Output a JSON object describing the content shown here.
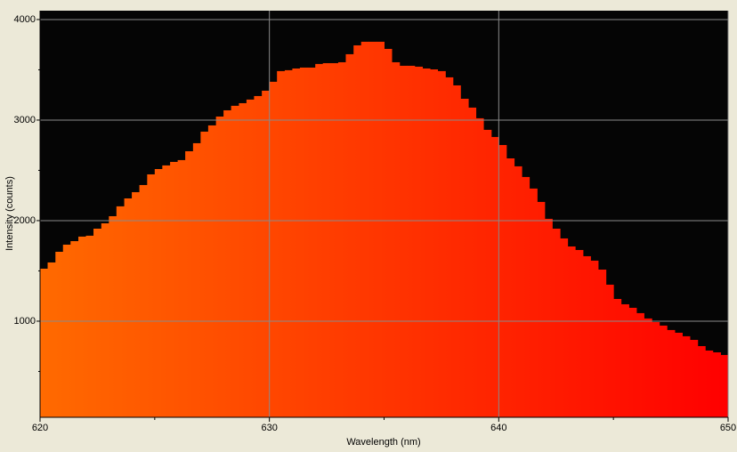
{
  "chart_data": {
    "type": "histogram",
    "xlabel": "Wavelength (nm)",
    "ylabel": "Intensity (counts)",
    "bins": [
      620,
      620.33,
      620.67,
      621,
      621.33,
      621.67,
      622,
      622.33,
      622.67,
      623,
      623.33,
      623.67,
      624,
      624.33,
      624.67,
      625,
      625.33,
      625.67,
      626,
      626.33,
      626.67,
      627,
      627.33,
      627.67,
      628,
      628.33,
      628.67,
      629,
      629.33,
      629.67,
      630,
      630.33,
      630.67,
      631,
      631.33,
      631.67,
      632,
      632.33,
      632.67,
      633,
      633.33,
      633.67,
      634,
      634.33,
      634.67,
      635,
      635.33,
      635.67,
      636,
      636.33,
      636.67,
      637,
      637.33,
      637.67,
      638,
      638.33,
      638.67,
      639,
      639.33,
      639.67,
      640,
      640.33,
      640.67,
      641,
      641.33,
      641.67,
      642,
      642.33,
      642.67,
      643,
      643.33,
      643.67,
      644,
      644.33,
      644.67,
      645,
      645.33,
      645.67,
      646,
      646.33,
      646.67,
      647,
      647.33,
      647.67,
      648,
      648.33,
      648.67,
      649,
      649.33,
      649.67,
      650
    ],
    "values": [
      1522,
      1584,
      1690,
      1761,
      1796,
      1841,
      1850,
      1920,
      1973,
      2044,
      2142,
      2221,
      2283,
      2354,
      2460,
      2513,
      2549,
      2584,
      2602,
      2690,
      2770,
      2885,
      2947,
      3035,
      3097,
      3142,
      3168,
      3204,
      3239,
      3292,
      3381,
      3487,
      3496,
      3513,
      3522,
      3522,
      3558,
      3566,
      3566,
      3575,
      3655,
      3743,
      3779,
      3779,
      3779,
      3708,
      3575,
      3540,
      3540,
      3531,
      3513,
      3504,
      3487,
      3425,
      3345,
      3212,
      3124,
      3018,
      2903,
      2832,
      2752,
      2619,
      2540,
      2434,
      2319,
      2186,
      2018,
      1920,
      1823,
      1743,
      1708,
      1646,
      1602,
      1513,
      1363,
      1221,
      1168,
      1133,
      1080,
      1027,
      991,
      956,
      912,
      885,
      850,
      814,
      752,
      708,
      690,
      664
    ],
    "colors": [
      "#ff6a00",
      "#ff0000"
    ],
    "xlim": [
      620,
      650
    ],
    "ylim": [
      44,
      4088
    ],
    "xticks": [
      620,
      630,
      640,
      650
    ],
    "xminorticks": [
      625,
      635,
      645
    ],
    "yticks": [
      1000,
      2000,
      3000,
      4000
    ],
    "yminorticks": [
      500,
      1500,
      2500,
      3500
    ],
    "grid": true
  }
}
